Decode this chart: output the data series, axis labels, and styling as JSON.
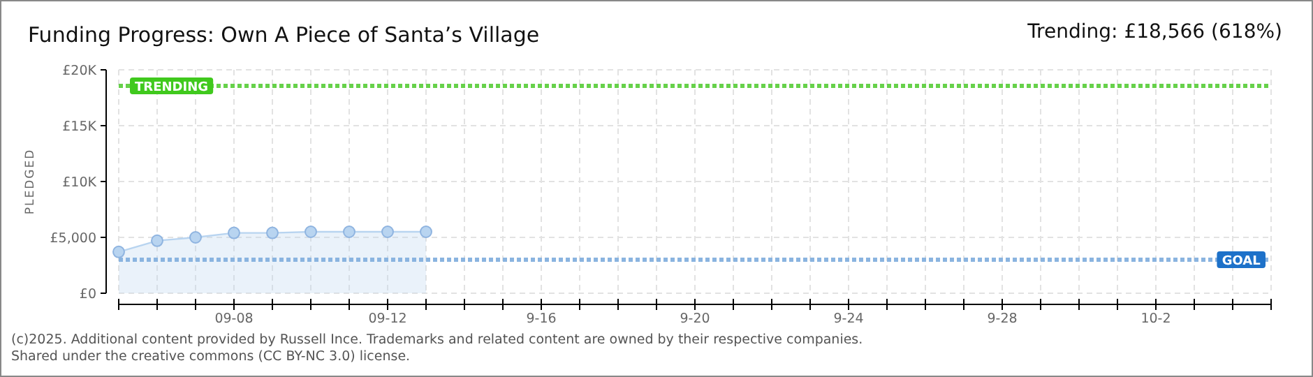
{
  "chart_data": {
    "type": "area",
    "title": "Funding Progress: Own A Piece of Santa’s Village",
    "ylabel": "PLEDGED",
    "x": [
      "--09-05",
      "--09-06",
      "--09-07",
      "--09-08",
      "--09-09",
      "--09-10",
      "--09-11",
      "--09-12",
      "--09-13"
    ],
    "series": [
      {
        "color": "#b8d4f0",
        "values": [
          3700,
          4700,
          5000,
          5400,
          5400,
          5500,
          5500,
          5500,
          5500
        ]
      }
    ],
    "xlim": [
      "--09-05",
      "--10-05"
    ],
    "xticks": [
      {
        "value": "--09-05",
        "label": null
      },
      {
        "value": "--09-06",
        "label": null
      },
      {
        "value": "--09-07",
        "label": null
      },
      {
        "value": "--09-08",
        "label": "09-08"
      },
      {
        "value": "--09-09",
        "label": null
      },
      {
        "value": "--09-10",
        "label": null
      },
      {
        "value": "--09-11",
        "label": null
      },
      {
        "value": "--09-12",
        "label": "09-12"
      },
      {
        "value": "--09-13",
        "label": null
      },
      {
        "value": "--09-14",
        "label": null
      },
      {
        "value": "--09-15",
        "label": null
      },
      {
        "value": "--09-16",
        "label": "9-16"
      },
      {
        "value": "--09-17",
        "label": null
      },
      {
        "value": "--09-18",
        "label": null
      },
      {
        "value": "--09-19",
        "label": null
      },
      {
        "value": "--09-20",
        "label": "9-20"
      },
      {
        "value": "--09-21",
        "label": null
      },
      {
        "value": "--09-22",
        "label": null
      },
      {
        "value": "--09-23",
        "label": null
      },
      {
        "value": "--09-24",
        "label": "9-24"
      },
      {
        "value": "--09-25",
        "label": null
      },
      {
        "value": "--09-26",
        "label": null
      },
      {
        "value": "--09-27",
        "label": null
      },
      {
        "value": "--09-28",
        "label": "9-28"
      },
      {
        "value": "--09-29",
        "label": null
      },
      {
        "value": "--09-30",
        "label": null
      },
      {
        "value": "--10-01",
        "label": null
      },
      {
        "value": "--10-02",
        "label": "10-2"
      },
      {
        "value": "--10-03",
        "label": null
      },
      {
        "value": "--10-04",
        "label": null
      },
      {
        "value": "--10-05",
        "label": null
      }
    ],
    "ylim": [
      0,
      20000
    ],
    "yticks": [
      {
        "value": 0,
        "label": "£0"
      },
      {
        "value": 5000,
        "label": "£5,000"
      },
      {
        "value": 10000,
        "label": "£10K"
      },
      {
        "value": 15000,
        "label": "£15K"
      },
      {
        "value": 20000,
        "label": "£20K"
      }
    ],
    "grid": true,
    "marker": "circle",
    "ref_lines": [
      {
        "axis": "y",
        "value": 18566,
        "label": "TRENDING",
        "color": "#66d14a",
        "line_style": "dotted"
      },
      {
        "axis": "y",
        "value": 3000,
        "label": "GOAL",
        "color": "#8ab4e0",
        "line_style": "dotted"
      }
    ],
    "annotations": [
      "Trending: £18,566 (618%)",
      "(c)2025. Additional content provided by Russell Ince. Trademarks and related content are owned by their respective companies.",
      "Shared under the creative commons (CC BY-NC 3.0) license."
    ]
  }
}
